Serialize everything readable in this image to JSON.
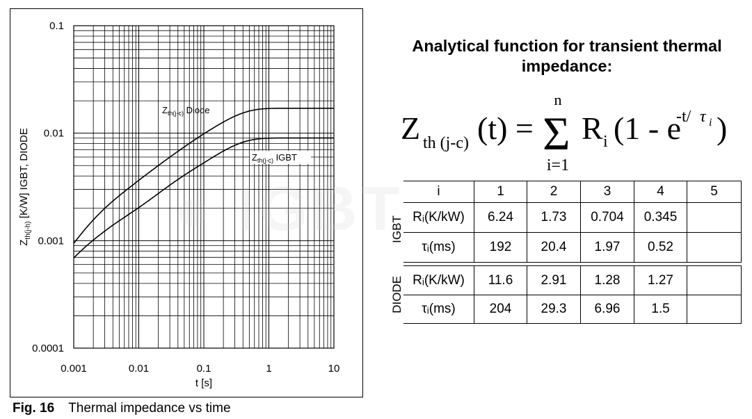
{
  "caption": {
    "label": "Fig. 16",
    "text": "Thermal impedance vs time"
  },
  "title": "Analytical function for transient thermal impedance:",
  "formula": {
    "lhs_z": "Z",
    "lhs_sub": "th (j-c)",
    "lhs_arg": "(t) =",
    "sum_top": "n",
    "sum_bottom": "i=1",
    "rhs_r": "R",
    "rhs_sub": "i",
    "rhs_paren": "(1 - e",
    "exp": "-t/",
    "tau": "τ",
    "tau_sub": "i",
    "close": ")"
  },
  "table": {
    "header": [
      "i",
      "1",
      "2",
      "3",
      "4",
      "5"
    ],
    "igbt_label": "IGBT",
    "diode_label": "DIODE",
    "igbt_rows": [
      {
        "name": "Rᵢ(K/kW)",
        "cells": [
          "6.24",
          "1.73",
          "0.704",
          "0.345",
          ""
        ]
      },
      {
        "name": "τᵢ(ms)",
        "cells": [
          "192",
          "20.4",
          "1.97",
          "0.52",
          ""
        ]
      }
    ],
    "diode_rows": [
      {
        "name": "Rᵢ(K/kW)",
        "cells": [
          "11.6",
          "2.91",
          "1.28",
          "1.27",
          ""
        ]
      },
      {
        "name": "τᵢ(ms)",
        "cells": [
          "204",
          "29.3",
          "6.96",
          "1.5",
          ""
        ]
      }
    ]
  },
  "chart_data": {
    "type": "line",
    "x_scale": "log",
    "y_scale": "log",
    "xlim": [
      0.001,
      10
    ],
    "ylim": [
      0.0001,
      0.1
    ],
    "grid": true,
    "xlabel": "t  [s]",
    "ylabel": "Z_th(j-h) [K/W]   IGBT, DIODE",
    "ylabel_main": "Z",
    "ylabel_sub": "th(j-h)",
    "ylabel_rest": " [K/W]   IGBT, DIODE",
    "x_ticks": [
      "0.001",
      "0.01",
      "0.1",
      "1",
      "10"
    ],
    "y_ticks": [
      "0.1",
      "0.01",
      "0.001",
      "0.0001"
    ],
    "series": [
      {
        "name": "Z_th(j-c) Diode",
        "label_main": "Z",
        "label_sub": "th(j-c)",
        "label_rest": " Diode",
        "R_K_per_kW": [
          11.6,
          2.91,
          1.28,
          1.27
        ],
        "tau_ms": [
          204,
          29.3,
          6.96,
          1.5
        ]
      },
      {
        "name": "Z_th(j-c) IGBT",
        "label_main": "Z",
        "label_sub": "th(j-c)",
        "label_rest": " IGBT",
        "R_K_per_kW": [
          6.24,
          1.73,
          0.704,
          0.345
        ],
        "tau_ms": [
          192,
          20.4,
          1.97,
          0.52
        ]
      }
    ]
  }
}
